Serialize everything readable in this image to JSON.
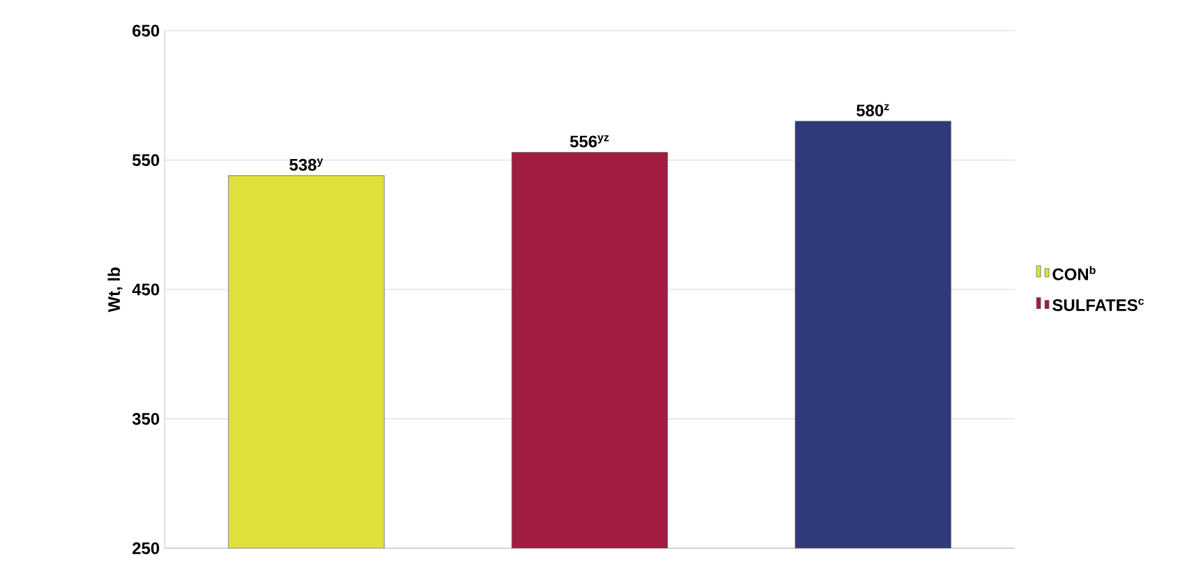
{
  "chart_data": {
    "type": "bar",
    "ylabel": "Wt, lb",
    "categories": [
      null,
      null,
      null
    ],
    "series": [
      {
        "name": "CON$^{b}$",
        "color": "#e0e03a",
        "values": [
          538,
          null,
          null
        ],
        "value_labels": [
          "538$^{y}$",
          null,
          null
        ]
      },
      {
        "name": "SULFATES$^{c}$",
        "color": "#a01c40",
        "values": [
          null,
          556,
          null
        ],
        "value_labels": [
          null,
          "556$^{yz}$",
          null
        ]
      },
      {
        "color": "#2e3a7a",
        "values": [
          null,
          null,
          580
        ],
        "value_labels": [
          null,
          null,
          "580$^{z}$"
        ]
      }
    ],
    "ylim": [
      250,
      650
    ],
    "yticks": [
      250,
      350,
      450,
      550,
      650
    ],
    "grid": "y",
    "legend": "right",
    "tick_labels": "y"
  }
}
